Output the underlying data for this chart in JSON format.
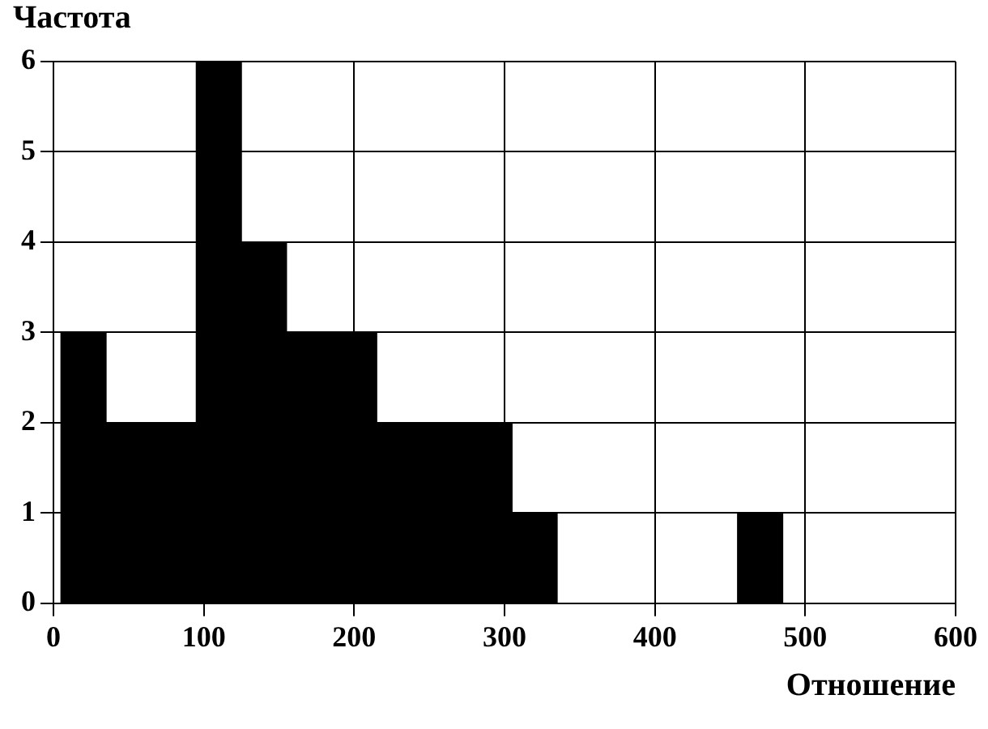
{
  "chart_data": {
    "type": "histogram",
    "ylabel": "Частота",
    "xlabel": "Отношение",
    "bins": [
      5,
      35,
      65,
      95,
      125,
      155,
      185,
      215,
      245,
      275,
      305,
      335,
      365,
      395,
      425,
      455,
      485
    ],
    "values": [
      3,
      2,
      2,
      6,
      4,
      3,
      3,
      2,
      2,
      2,
      1,
      0,
      0,
      0,
      0,
      1
    ],
    "color": "#000000",
    "xlim": [
      0,
      600
    ],
    "xticks": [
      0,
      100,
      200,
      300,
      400,
      500,
      600
    ],
    "ylim": [
      0,
      6
    ],
    "yticks": [
      0,
      1,
      2,
      3,
      4,
      5,
      6
    ],
    "grid": true,
    "legend": false
  }
}
